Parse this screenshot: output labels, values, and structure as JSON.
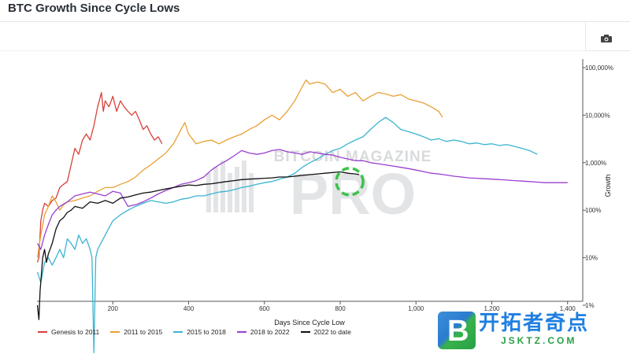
{
  "page": {
    "title": "BTC Growth Since Cycle Lows"
  },
  "toolbar": {
    "camera_icon": "camera-icon"
  },
  "watermark": {
    "bg_text": "BITCOIN MAGAZINE",
    "bg_big": "PRO",
    "site_cn": "开拓者奇点",
    "site_url": "JSKTZ.COM"
  },
  "colors": {
    "genesis": "#d9403a",
    "c2011": "#e8a032",
    "c2015": "#3bb4d0",
    "c2018": "#9a3fd0",
    "c2022": "#111111",
    "highlight": "#3cc24a"
  },
  "chart_data": {
    "type": "line",
    "xlabel": "Days Since Cycle Low",
    "ylabel": "Growth",
    "xlim": [
      0,
      1440
    ],
    "ylim_log10": [
      0,
      5
    ],
    "y_scale": "log",
    "x_ticks": [
      {
        "v": 200,
        "label": "200"
      },
      {
        "v": 400,
        "label": "400"
      },
      {
        "v": 600,
        "label": "600"
      },
      {
        "v": 800,
        "label": "800"
      },
      {
        "v": 1000,
        "label": "1,000"
      },
      {
        "v": 1200,
        "label": "1,200"
      },
      {
        "v": 1400,
        "label": "1,400"
      }
    ],
    "y_ticks": [
      {
        "v": 1,
        "label": "1%"
      },
      {
        "v": 10,
        "label": "10%"
      },
      {
        "v": 100,
        "label": "100%"
      },
      {
        "v": 1000,
        "label": "1,000%"
      },
      {
        "v": 10000,
        "label": "10,000%"
      },
      {
        "v": 100000,
        "label": "100,000%"
      }
    ],
    "legend_position": "bottom-left",
    "grid": false,
    "highlight_circle": {
      "x": 825,
      "y": 400
    },
    "series": [
      {
        "name": "Genesis to 2011",
        "color_key": "genesis",
        "points": [
          [
            1,
            8
          ],
          [
            5,
            10
          ],
          [
            10,
            60
          ],
          [
            15,
            100
          ],
          [
            20,
            140
          ],
          [
            30,
            120
          ],
          [
            40,
            160
          ],
          [
            50,
            180
          ],
          [
            60,
            300
          ],
          [
            70,
            350
          ],
          [
            80,
            400
          ],
          [
            90,
            900
          ],
          [
            100,
            2000
          ],
          [
            110,
            1500
          ],
          [
            120,
            3000
          ],
          [
            130,
            4000
          ],
          [
            140,
            3000
          ],
          [
            150,
            6000
          ],
          [
            160,
            15000
          ],
          [
            170,
            30000
          ],
          [
            175,
            12000
          ],
          [
            180,
            20000
          ],
          [
            190,
            15000
          ],
          [
            200,
            25000
          ],
          [
            210,
            12000
          ],
          [
            220,
            20000
          ],
          [
            230,
            15000
          ],
          [
            240,
            12000
          ],
          [
            250,
            10000
          ],
          [
            260,
            12000
          ],
          [
            270,
            8000
          ],
          [
            280,
            5000
          ],
          [
            290,
            6000
          ],
          [
            300,
            4000
          ],
          [
            310,
            3000
          ],
          [
            320,
            3500
          ],
          [
            330,
            2500
          ]
        ]
      },
      {
        "name": "2011 to 2015",
        "color_key": "c2011",
        "points": [
          [
            1,
            10
          ],
          [
            10,
            30
          ],
          [
            20,
            80
          ],
          [
            30,
            120
          ],
          [
            40,
            200
          ],
          [
            50,
            150
          ],
          [
            60,
            100
          ],
          [
            70,
            130
          ],
          [
            80,
            150
          ],
          [
            100,
            160
          ],
          [
            120,
            180
          ],
          [
            140,
            200
          ],
          [
            160,
            250
          ],
          [
            180,
            300
          ],
          [
            200,
            300
          ],
          [
            220,
            350
          ],
          [
            240,
            400
          ],
          [
            260,
            500
          ],
          [
            280,
            700
          ],
          [
            300,
            900
          ],
          [
            320,
            1200
          ],
          [
            340,
            1600
          ],
          [
            360,
            2500
          ],
          [
            380,
            5000
          ],
          [
            390,
            7000
          ],
          [
            400,
            4000
          ],
          [
            420,
            2500
          ],
          [
            440,
            2800
          ],
          [
            460,
            3000
          ],
          [
            480,
            2500
          ],
          [
            500,
            3000
          ],
          [
            520,
            3500
          ],
          [
            540,
            4000
          ],
          [
            560,
            5000
          ],
          [
            580,
            6000
          ],
          [
            600,
            8000
          ],
          [
            620,
            10000
          ],
          [
            640,
            8000
          ],
          [
            660,
            12000
          ],
          [
            680,
            20000
          ],
          [
            700,
            40000
          ],
          [
            710,
            55000
          ],
          [
            720,
            45000
          ],
          [
            740,
            50000
          ],
          [
            760,
            45000
          ],
          [
            780,
            30000
          ],
          [
            800,
            35000
          ],
          [
            820,
            25000
          ],
          [
            840,
            30000
          ],
          [
            860,
            20000
          ],
          [
            880,
            25000
          ],
          [
            900,
            30000
          ],
          [
            920,
            28000
          ],
          [
            940,
            25000
          ],
          [
            960,
            27000
          ],
          [
            980,
            22000
          ],
          [
            1000,
            20000
          ],
          [
            1020,
            18000
          ],
          [
            1040,
            15000
          ],
          [
            1060,
            12000
          ],
          [
            1070,
            9000
          ]
        ]
      },
      {
        "name": "2015 to 2018",
        "color_key": "c2015",
        "points": [
          [
            1,
            5
          ],
          [
            10,
            3
          ],
          [
            20,
            8
          ],
          [
            30,
            10
          ],
          [
            40,
            7
          ],
          [
            50,
            10
          ],
          [
            60,
            15
          ],
          [
            70,
            10
          ],
          [
            80,
            25
          ],
          [
            90,
            20
          ],
          [
            100,
            15
          ],
          [
            110,
            30
          ],
          [
            120,
            20
          ],
          [
            130,
            25
          ],
          [
            140,
            15
          ],
          [
            145,
            10
          ],
          [
            150,
            0.1
          ],
          [
            155,
            10
          ],
          [
            160,
            15
          ],
          [
            180,
            30
          ],
          [
            200,
            60
          ],
          [
            220,
            80
          ],
          [
            240,
            100
          ],
          [
            260,
            120
          ],
          [
            280,
            140
          ],
          [
            300,
            160
          ],
          [
            320,
            150
          ],
          [
            340,
            140
          ],
          [
            360,
            150
          ],
          [
            380,
            170
          ],
          [
            400,
            180
          ],
          [
            420,
            200
          ],
          [
            440,
            200
          ],
          [
            460,
            220
          ],
          [
            480,
            240
          ],
          [
            500,
            250
          ],
          [
            520,
            270
          ],
          [
            540,
            300
          ],
          [
            560,
            320
          ],
          [
            580,
            350
          ],
          [
            600,
            380
          ],
          [
            620,
            400
          ],
          [
            640,
            450
          ],
          [
            660,
            500
          ],
          [
            680,
            600
          ],
          [
            700,
            800
          ],
          [
            720,
            1000
          ],
          [
            740,
            1200
          ],
          [
            760,
            1500
          ],
          [
            780,
            1800
          ],
          [
            800,
            2000
          ],
          [
            820,
            2500
          ],
          [
            840,
            3000
          ],
          [
            860,
            3500
          ],
          [
            880,
            5000
          ],
          [
            900,
            7000
          ],
          [
            920,
            9000
          ],
          [
            940,
            7000
          ],
          [
            960,
            5000
          ],
          [
            980,
            4500
          ],
          [
            1000,
            4000
          ],
          [
            1020,
            3500
          ],
          [
            1040,
            3000
          ],
          [
            1060,
            3200
          ],
          [
            1080,
            2800
          ],
          [
            1100,
            3000
          ],
          [
            1120,
            2800
          ],
          [
            1140,
            2500
          ],
          [
            1160,
            2600
          ],
          [
            1180,
            2400
          ],
          [
            1200,
            2500
          ],
          [
            1220,
            2300
          ],
          [
            1240,
            2400
          ],
          [
            1260,
            2200
          ],
          [
            1280,
            2000
          ],
          [
            1300,
            1800
          ],
          [
            1320,
            1500
          ]
        ]
      },
      {
        "name": "2018 to 2022",
        "color_key": "c2018",
        "points": [
          [
            1,
            20
          ],
          [
            10,
            15
          ],
          [
            20,
            30
          ],
          [
            30,
            50
          ],
          [
            40,
            80
          ],
          [
            50,
            100
          ],
          [
            60,
            120
          ],
          [
            80,
            150
          ],
          [
            100,
            200
          ],
          [
            120,
            220
          ],
          [
            140,
            240
          ],
          [
            160,
            220
          ],
          [
            180,
            200
          ],
          [
            200,
            250
          ],
          [
            220,
            230
          ],
          [
            240,
            120
          ],
          [
            260,
            130
          ],
          [
            280,
            150
          ],
          [
            300,
            180
          ],
          [
            320,
            220
          ],
          [
            340,
            260
          ],
          [
            360,
            300
          ],
          [
            380,
            350
          ],
          [
            400,
            380
          ],
          [
            420,
            420
          ],
          [
            440,
            500
          ],
          [
            460,
            700
          ],
          [
            480,
            900
          ],
          [
            500,
            1100
          ],
          [
            520,
            1400
          ],
          [
            540,
            1800
          ],
          [
            560,
            1600
          ],
          [
            580,
            1500
          ],
          [
            600,
            1600
          ],
          [
            620,
            1800
          ],
          [
            640,
            1900
          ],
          [
            660,
            1700
          ],
          [
            680,
            1600
          ],
          [
            700,
            1500
          ],
          [
            720,
            1700
          ],
          [
            740,
            1600
          ],
          [
            760,
            1500
          ],
          [
            780,
            1450
          ],
          [
            800,
            1300
          ],
          [
            820,
            1200
          ],
          [
            840,
            1100
          ],
          [
            860,
            1100
          ],
          [
            880,
            1000
          ],
          [
            900,
            950
          ],
          [
            920,
            900
          ],
          [
            940,
            850
          ],
          [
            960,
            800
          ],
          [
            980,
            750
          ],
          [
            1000,
            700
          ],
          [
            1020,
            650
          ],
          [
            1040,
            600
          ],
          [
            1060,
            580
          ],
          [
            1080,
            550
          ],
          [
            1100,
            520
          ],
          [
            1120,
            500
          ],
          [
            1140,
            480
          ],
          [
            1160,
            470
          ],
          [
            1180,
            460
          ],
          [
            1200,
            450
          ],
          [
            1220,
            440
          ],
          [
            1240,
            430
          ],
          [
            1260,
            420
          ],
          [
            1280,
            410
          ],
          [
            1300,
            400
          ],
          [
            1320,
            390
          ],
          [
            1340,
            380
          ],
          [
            1360,
            380
          ],
          [
            1380,
            380
          ],
          [
            1400,
            380
          ]
        ]
      },
      {
        "name": "2022 to date",
        "color_key": "c2022",
        "points": [
          [
            1,
            1
          ],
          [
            5,
            0.5
          ],
          [
            8,
            2
          ],
          [
            12,
            5
          ],
          [
            15,
            10
          ],
          [
            20,
            15
          ],
          [
            25,
            8
          ],
          [
            30,
            12
          ],
          [
            40,
            20
          ],
          [
            50,
            40
          ],
          [
            60,
            60
          ],
          [
            70,
            70
          ],
          [
            80,
            90
          ],
          [
            90,
            100
          ],
          [
            100,
            120
          ],
          [
            120,
            110
          ],
          [
            140,
            150
          ],
          [
            160,
            140
          ],
          [
            180,
            160
          ],
          [
            200,
            140
          ],
          [
            220,
            180
          ],
          [
            240,
            190
          ],
          [
            260,
            210
          ],
          [
            280,
            230
          ],
          [
            300,
            240
          ],
          [
            320,
            260
          ],
          [
            340,
            280
          ],
          [
            360,
            300
          ],
          [
            380,
            320
          ],
          [
            400,
            340
          ],
          [
            420,
            330
          ],
          [
            440,
            350
          ],
          [
            460,
            360
          ],
          [
            480,
            380
          ],
          [
            500,
            400
          ],
          [
            520,
            420
          ],
          [
            540,
            440
          ],
          [
            560,
            450
          ],
          [
            580,
            460
          ],
          [
            600,
            470
          ],
          [
            620,
            480
          ],
          [
            640,
            500
          ],
          [
            660,
            500
          ],
          [
            680,
            520
          ],
          [
            700,
            540
          ],
          [
            720,
            560
          ],
          [
            740,
            580
          ],
          [
            760,
            600
          ],
          [
            780,
            620
          ],
          [
            800,
            640
          ],
          [
            820,
            600
          ],
          [
            840,
            580
          ],
          [
            850,
            560
          ]
        ]
      }
    ]
  }
}
